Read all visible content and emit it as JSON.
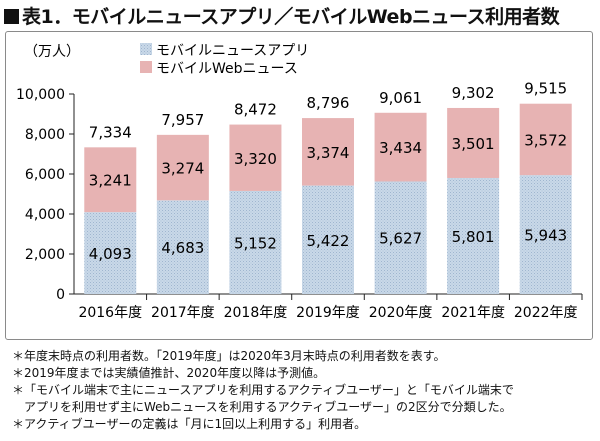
{
  "title": "表1．モバイルニュースアプリ／モバイルWebニュース利用者数",
  "chart_data": {
    "type": "bar",
    "stacked": true,
    "unit_label": "（万人）",
    "categories": [
      "2016年度",
      "2017年度",
      "2018年度",
      "2019年度",
      "2020年度",
      "2021年度",
      "2022年度"
    ],
    "series": [
      {
        "name": "モバイルニュースアプリ",
        "color": "#c9d8e8",
        "pattern": "dotted",
        "values": [
          4093,
          4683,
          5152,
          5422,
          5627,
          5801,
          5943
        ]
      },
      {
        "name": "モバイルWebニュース",
        "color": "#e7b3b3",
        "values": [
          3241,
          3274,
          3320,
          3374,
          3434,
          3501,
          3572
        ]
      }
    ],
    "totals": [
      7334,
      7957,
      8472,
      8796,
      9061,
      9302,
      9515
    ],
    "ylim": [
      0,
      10000
    ],
    "yticks": [
      0,
      2000,
      4000,
      6000,
      8000,
      10000
    ],
    "legend_position": "top-left",
    "grid": false
  },
  "notes": [
    "＊年度末時点の利用者数。「2019年度」は2020年3月末時点の利用者数を表す。",
    "＊2019年度までは実績値推計、2020年度以降は予測値。",
    "＊「モバイル端末で主にニュースアプリを利用するアクティブユーザー」と「モバイル端末で",
    "　アプリを利用せず主にWebニュースを利用するアクティブユーザー」の2区分で分類した。",
    "＊アクティブユーザーの定義は「月に1回以上利用する」利用者。"
  ]
}
